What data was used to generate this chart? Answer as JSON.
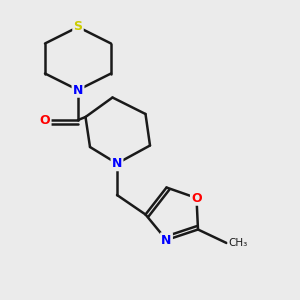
{
  "bg_color": "#ebebeb",
  "bond_color": "#1a1a1a",
  "bond_width": 1.8,
  "atom_S": {
    "color": "#cccc00",
    "label": "S"
  },
  "atom_N": {
    "color": "#0000ff",
    "label": "N"
  },
  "atom_O_red": {
    "color": "#ff0000",
    "label": "O"
  },
  "atom_O_carbonyl": {
    "color": "#ff0000",
    "label": "O"
  },
  "font_size": 9,
  "font_size_methyl": 8
}
